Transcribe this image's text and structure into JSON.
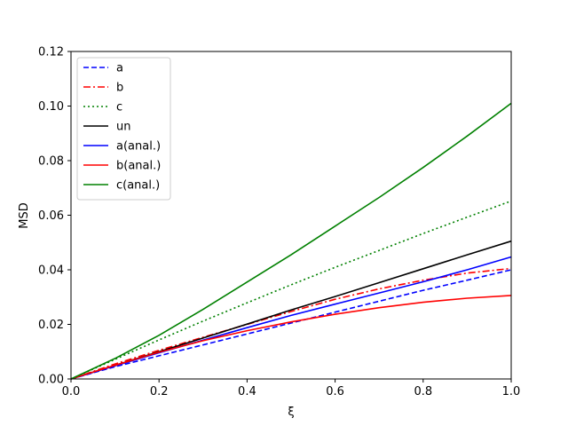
{
  "chart_data": {
    "type": "line",
    "title": "",
    "xlabel": "ξ",
    "ylabel": "MSD",
    "xlim": [
      0,
      1
    ],
    "ylim": [
      0,
      0.12
    ],
    "xticks": [
      "0.0",
      "0.2",
      "0.4",
      "0.6",
      "0.8",
      "1.0"
    ],
    "yticks": [
      "0.00",
      "0.02",
      "0.04",
      "0.06",
      "0.08",
      "0.10",
      "0.12"
    ],
    "grid": false,
    "legend_position": "top-left",
    "x": [
      0,
      0.1,
      0.2,
      0.3,
      0.4,
      0.5,
      0.6,
      0.7,
      0.8,
      0.9,
      1.0
    ],
    "series": [
      {
        "name": "a",
        "color": "#0000ff",
        "dash": "dashed",
        "values": [
          0,
          0.0045,
          0.0085,
          0.0125,
          0.0165,
          0.0205,
          0.0245,
          0.0285,
          0.0325,
          0.0362,
          0.04
        ]
      },
      {
        "name": "b",
        "color": "#ff0000",
        "dash": "dashdot",
        "values": [
          0,
          0.0055,
          0.0105,
          0.0153,
          0.02,
          0.0247,
          0.0292,
          0.033,
          0.0362,
          0.0388,
          0.0405
        ]
      },
      {
        "name": "c",
        "color": "#008000",
        "dash": "dotted",
        "values": [
          0,
          0.0072,
          0.0143,
          0.0212,
          0.0279,
          0.0345,
          0.0409,
          0.0471,
          0.0533,
          0.0593,
          0.0652
        ]
      },
      {
        "name": "un",
        "color": "#000000",
        "dash": "solid",
        "values": [
          0,
          0.005,
          0.01,
          0.015,
          0.0201,
          0.0253,
          0.0302,
          0.0353,
          0.0404,
          0.0455,
          0.0505
        ]
      },
      {
        "name": "a(anal.)",
        "color": "#0000ff",
        "dash": "solid",
        "values": [
          0,
          0.0048,
          0.0096,
          0.0142,
          0.0188,
          0.0233,
          0.0274,
          0.0315,
          0.0356,
          0.04,
          0.0447
        ]
      },
      {
        "name": "b(anal.)",
        "color": "#ff0000",
        "dash": "solid",
        "values": [
          0,
          0.005,
          0.0098,
          0.014,
          0.0177,
          0.0209,
          0.0237,
          0.0261,
          0.0281,
          0.0296,
          0.0306
        ]
      },
      {
        "name": "c(anal.)",
        "color": "#008000",
        "dash": "solid",
        "values": [
          0,
          0.0075,
          0.016,
          0.0255,
          0.0355,
          0.0455,
          0.056,
          0.0665,
          0.0775,
          0.089,
          0.101
        ]
      }
    ]
  }
}
